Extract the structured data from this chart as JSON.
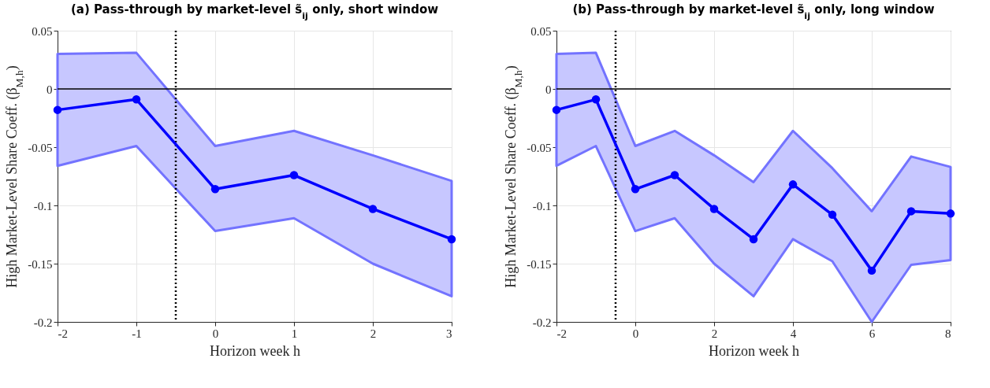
{
  "chart_data": [
    {
      "type": "line",
      "title": "(a) Pass-through by market-level s̃$_{ij}$ only, short window",
      "xlabel": "Horizon week h",
      "ylabel": "High Market-Level Share Coeff. (β$_{M,h}$)",
      "x": [
        -2,
        -1,
        0,
        1,
        2,
        3
      ],
      "xlim": [
        -2,
        3
      ],
      "xticks": [
        -2,
        -1,
        0,
        1,
        2,
        3
      ],
      "ylim": [
        -0.2,
        0.05
      ],
      "yticks": [
        -0.2,
        -0.15,
        -0.1,
        -0.05,
        0,
        0.05
      ],
      "grid": true,
      "marker": "circle",
      "series": [
        {
          "color": "#0000ff",
          "values": [
            -0.018,
            -0.009,
            -0.086,
            -0.074,
            -0.103,
            -0.129
          ],
          "lower": [
            -0.066,
            -0.049,
            -0.122,
            -0.111,
            -0.15,
            -0.178
          ],
          "upper": [
            0.03,
            0.031,
            -0.049,
            -0.036,
            -0.057,
            -0.079
          ]
        }
      ],
      "ref_lines": [
        {
          "axis": "y",
          "value": 0,
          "color": "#000000",
          "line_style": "solid"
        },
        {
          "axis": "x",
          "value": -0.5,
          "color": "#000000",
          "line_style": "dotted"
        }
      ]
    },
    {
      "type": "line",
      "title": "(b) Pass-through by market-level s̃$_{ij}$ only, long window",
      "xlabel": "Horizon week h",
      "ylabel": "High Market-Level Share Coeff. (β$_{M,h}$)",
      "x": [
        -2,
        -1,
        0,
        1,
        2,
        3,
        4,
        5,
        6,
        7,
        8
      ],
      "xlim": [
        -2,
        8
      ],
      "xticks": [
        -2,
        0,
        2,
        4,
        6,
        8
      ],
      "ylim": [
        -0.2,
        0.05
      ],
      "yticks": [
        -0.2,
        -0.15,
        -0.1,
        -0.05,
        0,
        0.05
      ],
      "grid": true,
      "marker": "circle",
      "series": [
        {
          "color": "#0000ff",
          "values": [
            -0.018,
            -0.009,
            -0.086,
            -0.074,
            -0.103,
            -0.129,
            -0.082,
            -0.108,
            -0.156,
            -0.105,
            -0.107
          ],
          "lower": [
            -0.066,
            -0.049,
            -0.122,
            -0.111,
            -0.15,
            -0.178,
            -0.129,
            -0.148,
            -0.2,
            -0.151,
            -0.147
          ],
          "upper": [
            0.03,
            0.031,
            -0.049,
            -0.036,
            -0.057,
            -0.08,
            -0.036,
            -0.068,
            -0.105,
            -0.058,
            -0.067
          ]
        }
      ],
      "ref_lines": [
        {
          "axis": "y",
          "value": 0,
          "color": "#000000",
          "line_style": "solid"
        },
        {
          "axis": "x",
          "value": -0.5,
          "color": "#000000",
          "line_style": "dotted"
        }
      ]
    }
  ]
}
